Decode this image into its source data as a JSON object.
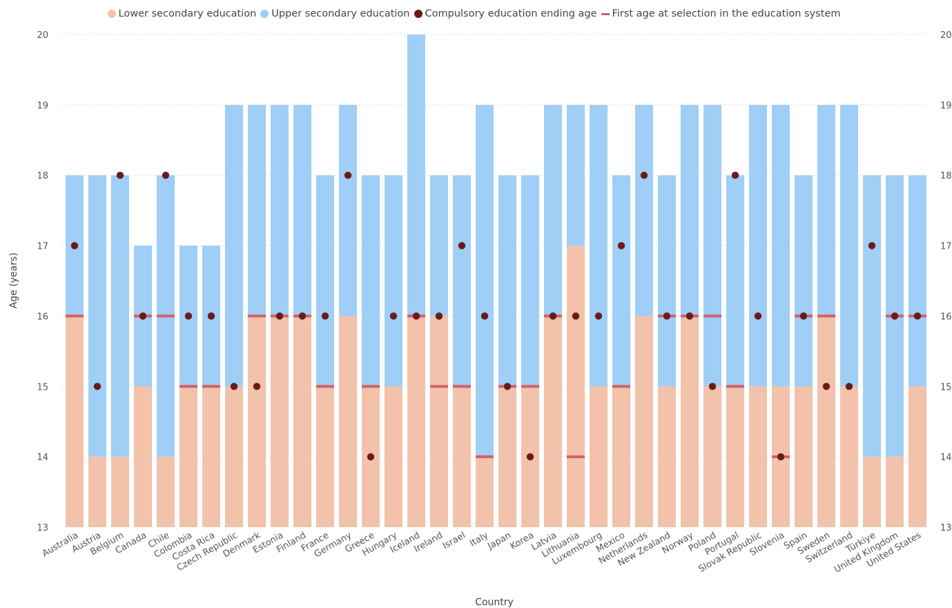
{
  "chart_data": {
    "type": "bar",
    "xlabel": "Country",
    "ylabel": "Age (years)",
    "ylim": [
      13,
      20
    ],
    "y_ticks": [
      "13",
      "14",
      "15",
      "16",
      "17",
      "18",
      "19",
      "20"
    ],
    "grid": true,
    "legend_position": "top-center",
    "categories": [
      "Australia",
      "Austria",
      "Belgium",
      "Canada",
      "Chile",
      "Colombia",
      "Costa Rica",
      "Czech Republic",
      "Denmark",
      "Estonia",
      "Finland",
      "France",
      "Germany",
      "Greece",
      "Hungary",
      "Iceland",
      "Ireland",
      "Israel",
      "Italy",
      "Japan",
      "Korea",
      "Latvia",
      "Lithuania",
      "Luxembourg",
      "Mexico",
      "Netherlands",
      "New Zealand",
      "Norway",
      "Poland",
      "Portugal",
      "Slovak Republic",
      "Slovenia",
      "Spain",
      "Sweden",
      "Switzerland",
      "Türkiye",
      "United Kingdom",
      "United States"
    ],
    "series": [
      {
        "name": "Lower secondary education",
        "kind": "bar",
        "color": "#f2c2aa",
        "values": [
          16,
          14,
          14,
          15,
          14,
          15,
          15,
          15,
          16,
          16,
          16,
          15,
          16,
          15,
          15,
          16,
          16,
          15,
          14,
          15,
          15,
          16,
          17,
          15,
          15,
          16,
          15,
          16,
          15,
          15,
          15,
          15,
          15,
          16,
          15,
          14,
          14,
          15
        ]
      },
      {
        "name": "Upper secondary education",
        "kind": "bar",
        "color": "#9fcef7",
        "values": [
          18,
          18,
          18,
          17,
          18,
          17,
          17,
          19,
          19,
          19,
          19,
          18,
          19,
          18,
          18,
          20,
          18,
          18,
          19,
          18,
          18,
          19,
          19,
          19,
          18,
          19,
          18,
          19,
          19,
          18,
          19,
          19,
          18,
          19,
          19,
          18,
          18,
          18
        ]
      },
      {
        "name": "Compulsory education ending age",
        "kind": "dot",
        "color": "#6b1a1a",
        "values": [
          17,
          15,
          18,
          16,
          18,
          16,
          16,
          15,
          15,
          16,
          16,
          16,
          18,
          14,
          16,
          16,
          16,
          17,
          16,
          15,
          14,
          16,
          16,
          16,
          17,
          18,
          16,
          16,
          15,
          18,
          16,
          14,
          16,
          15,
          15,
          17,
          16,
          16
        ]
      },
      {
        "name": "First age at selection in the education system",
        "kind": "marker",
        "color": "#d45f6b",
        "values": [
          16,
          null,
          null,
          16,
          16,
          15,
          15,
          null,
          16,
          16,
          16,
          15,
          null,
          15,
          null,
          16,
          15,
          15,
          14,
          15,
          15,
          16,
          14,
          null,
          15,
          null,
          16,
          16,
          16,
          15,
          null,
          14,
          16,
          16,
          null,
          null,
          16,
          16
        ]
      }
    ]
  }
}
